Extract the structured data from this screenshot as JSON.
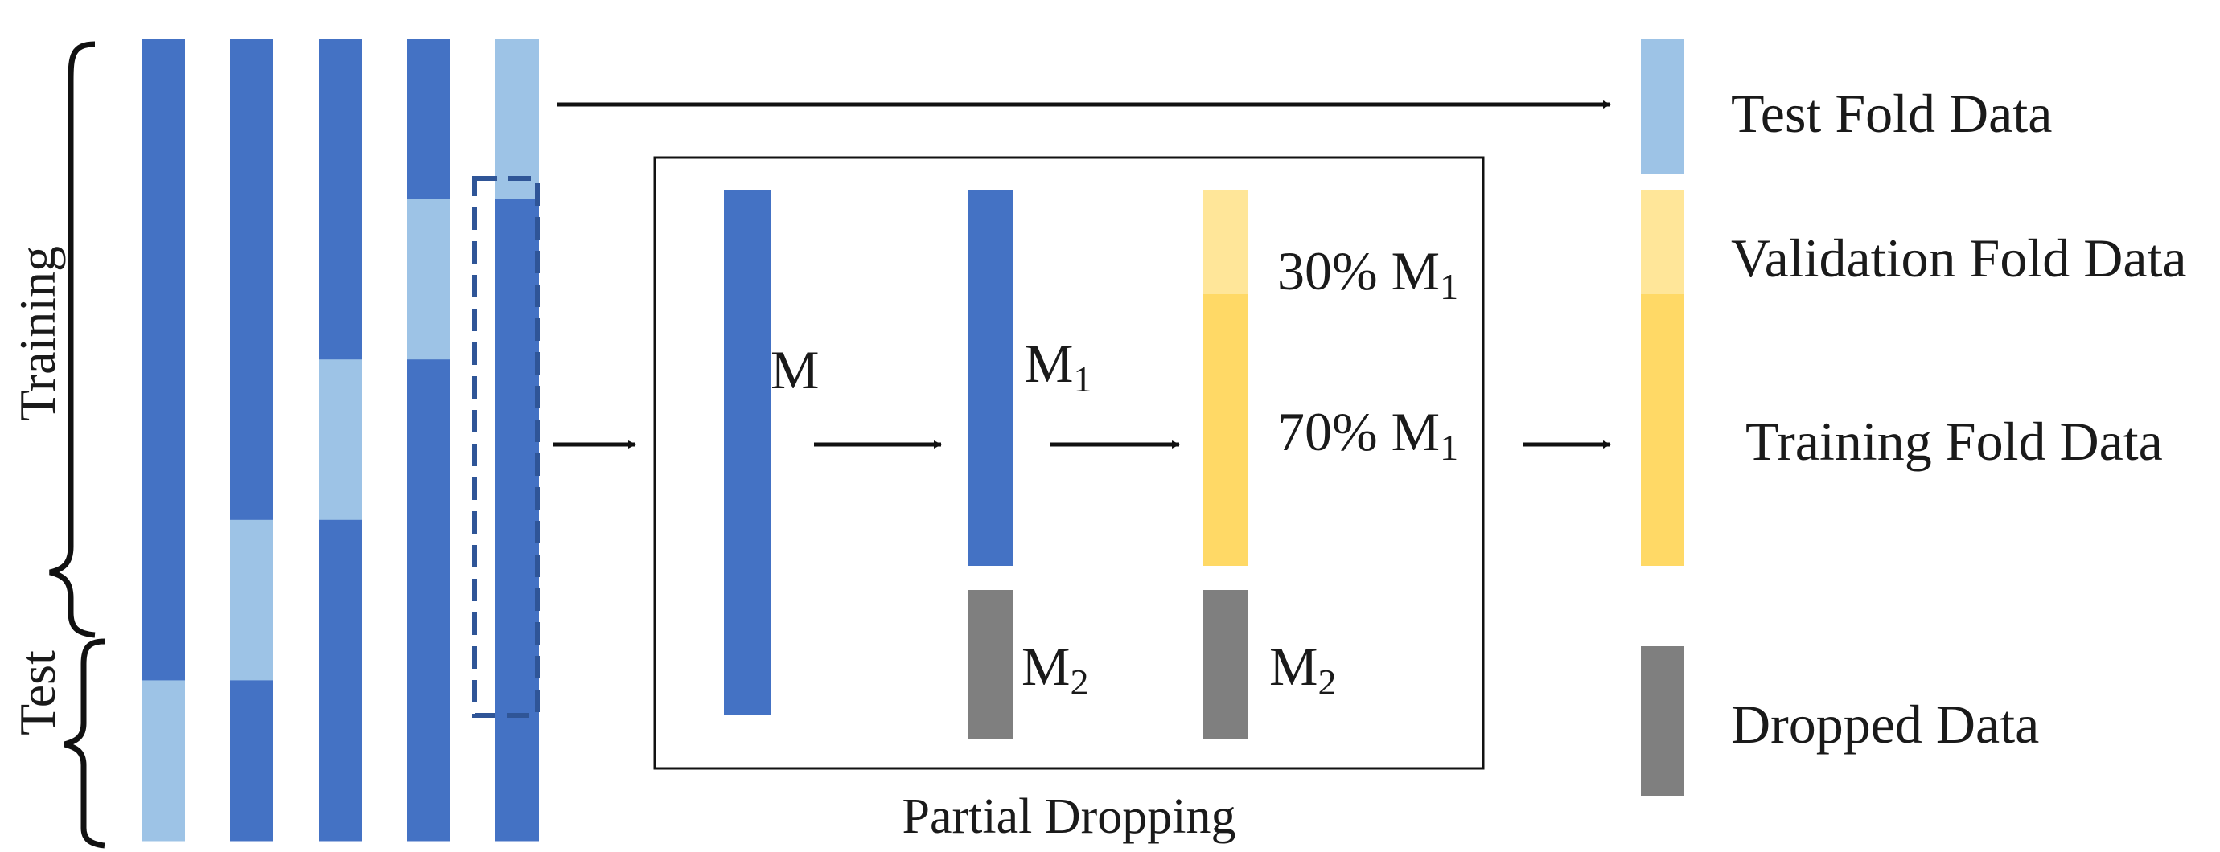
{
  "colors": {
    "training_blue": "#4472C4",
    "test_light_blue": "#9DC3E6",
    "validation_light_yellow": "#FFE699",
    "training_yellow": "#FFD966",
    "dropped_gray": "#7F7F7F",
    "line": "#111111",
    "dashed_box": "#2F5597"
  },
  "side_labels": {
    "training": "Training",
    "test": "Test"
  },
  "folds": {
    "count": 5,
    "selected_fold": 5,
    "test_fold_position": [
      5,
      4,
      3,
      2,
      1
    ],
    "parts_per_fold": 5
  },
  "partial_dropping": {
    "caption": "Partial Dropping",
    "m_label": "M",
    "m1_label": "M",
    "m1_sub": "1",
    "m2_label": "M",
    "m2_sub": "2",
    "m2b_label": "M",
    "m2b_sub": "2",
    "pct30_prefix": "30% M",
    "pct30_sub": "1",
    "pct70_prefix": "70% M",
    "pct70_sub": "1",
    "validation_share_percent": 30,
    "training_share_percent": 70
  },
  "legend": {
    "test": "Test Fold Data",
    "validation": "Validation Fold Data",
    "training": "Training Fold Data",
    "dropped": "Dropped Data"
  },
  "icons": {
    "brace": "curly-brace-icon",
    "arrow": "right-arrow-icon"
  }
}
